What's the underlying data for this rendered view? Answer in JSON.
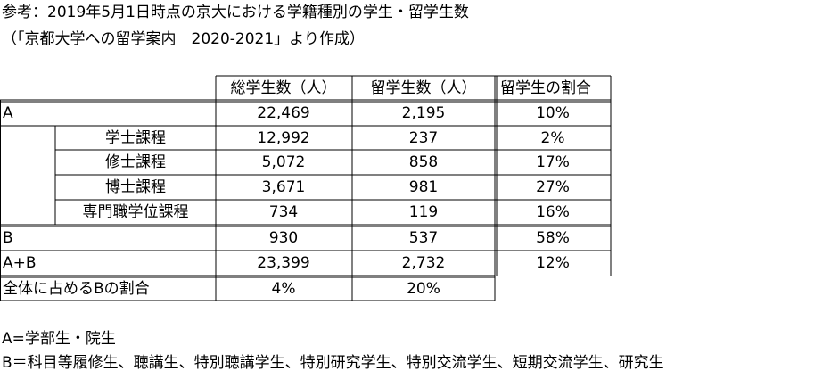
{
  "header": {
    "title": "参考：2019年5月1日時点の京大における学籍種別の学生・留学生数",
    "source": "（「京都大学への留学案内　2020-2021」より作成）"
  },
  "table": {
    "columns": [
      "総学生数（人）",
      "留学生数（人）",
      "留学生の割合"
    ],
    "rows": [
      {
        "label": "A",
        "cells": [
          "22,469",
          "2,195",
          "10%"
        ]
      },
      {
        "sublabel": "学士課程",
        "cells": [
          "12,992",
          "237",
          "2%"
        ]
      },
      {
        "sublabel": "修士課程",
        "cells": [
          "5,072",
          "858",
          "17%"
        ]
      },
      {
        "sublabel": "博士課程",
        "cells": [
          "3,671",
          "981",
          "27%"
        ]
      },
      {
        "sublabel": "専門職学位課程",
        "cells": [
          "734",
          "119",
          "16%"
        ]
      },
      {
        "label": "B",
        "cells": [
          "930",
          "537",
          "58%"
        ]
      },
      {
        "label": "A+B",
        "cells": [
          "23,399",
          "2,732",
          "12%"
        ]
      },
      {
        "label": "全体に占めるBの割合",
        "cells": [
          "4%",
          "20%"
        ]
      }
    ]
  },
  "notes": [
    "A=学部生・院生",
    "B＝科目等履修生、聴講生、特別聴講学生、特別研究学生、特別交流学生、短期交流学生、研究生"
  ]
}
